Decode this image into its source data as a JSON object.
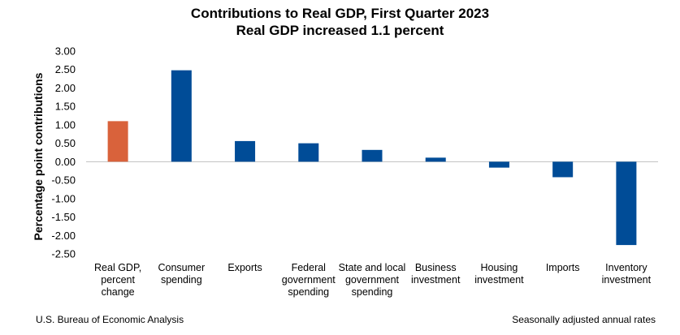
{
  "chart_data": {
    "type": "bar",
    "title": "Contributions to Real GDP, First Quarter 2023",
    "subtitle": "Real GDP increased 1.1 percent",
    "ylabel": "Percentage point contributions",
    "xlabel": "",
    "ylim": [
      -2.5,
      3.0
    ],
    "yticks": [
      "3.00",
      "2.50",
      "2.00",
      "1.50",
      "1.00",
      "0.50",
      "0.00",
      "-0.50",
      "-1.00",
      "-1.50",
      "-2.00",
      "-2.50"
    ],
    "ytick_values": [
      3.0,
      2.5,
      2.0,
      1.5,
      1.0,
      0.5,
      0.0,
      -0.5,
      -1.0,
      -1.5,
      -2.0,
      -2.5
    ],
    "grid": false,
    "categories": [
      [
        "Real GDP,",
        "percent",
        "change"
      ],
      [
        "Consumer",
        "spending"
      ],
      [
        "Exports"
      ],
      [
        "Federal",
        "government",
        "spending"
      ],
      [
        "State and local",
        "government",
        "spending"
      ],
      [
        "Business",
        "investment"
      ],
      [
        "Housing",
        "investment"
      ],
      [
        "Imports"
      ],
      [
        "Inventory",
        "investment"
      ]
    ],
    "values": [
      1.1,
      2.48,
      0.56,
      0.5,
      0.32,
      0.11,
      -0.16,
      -0.42,
      -2.26
    ],
    "colors": [
      "#D9623B",
      "#004C97",
      "#004C97",
      "#004C97",
      "#004C97",
      "#004C97",
      "#004C97",
      "#004C97",
      "#004C97"
    ]
  },
  "footer": {
    "source": "U.S. Bureau of Economic Analysis",
    "note": "Seasonally adjusted annual rates"
  }
}
